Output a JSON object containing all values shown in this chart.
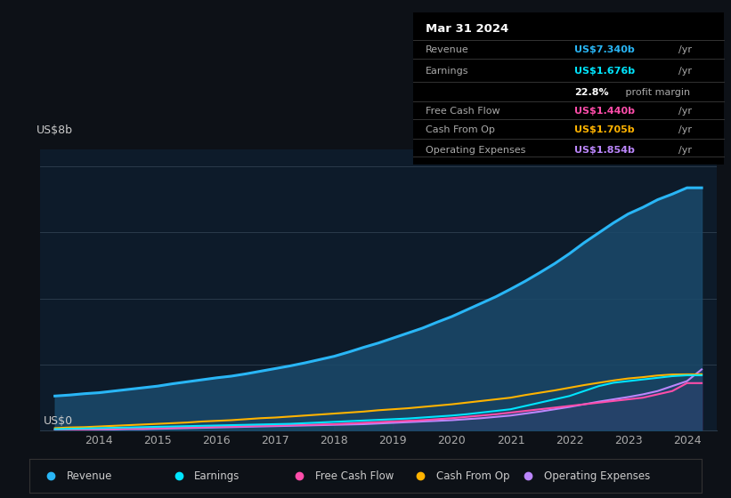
{
  "background_color": "#0d1117",
  "plot_bg_color": "#0d1b2a",
  "ylabel": "US$8b",
  "y0label": "US$0",
  "years": [
    2013.25,
    2013.5,
    2013.75,
    2014.0,
    2014.25,
    2014.5,
    2014.75,
    2015.0,
    2015.25,
    2015.5,
    2015.75,
    2016.0,
    2016.25,
    2016.5,
    2016.75,
    2017.0,
    2017.25,
    2017.5,
    2017.75,
    2018.0,
    2018.25,
    2018.5,
    2018.75,
    2019.0,
    2019.25,
    2019.5,
    2019.75,
    2020.0,
    2020.25,
    2020.5,
    2020.75,
    2021.0,
    2021.25,
    2021.5,
    2021.75,
    2022.0,
    2022.25,
    2022.5,
    2022.75,
    2023.0,
    2023.25,
    2023.5,
    2023.75,
    2024.0,
    2024.25
  ],
  "revenue": [
    1.05,
    1.08,
    1.12,
    1.15,
    1.2,
    1.25,
    1.3,
    1.35,
    1.42,
    1.48,
    1.54,
    1.6,
    1.65,
    1.72,
    1.8,
    1.88,
    1.96,
    2.05,
    2.15,
    2.25,
    2.38,
    2.52,
    2.65,
    2.8,
    2.95,
    3.1,
    3.28,
    3.45,
    3.65,
    3.85,
    4.05,
    4.28,
    4.52,
    4.78,
    5.05,
    5.35,
    5.68,
    5.98,
    6.28,
    6.55,
    6.75,
    6.98,
    7.15,
    7.34,
    7.34
  ],
  "earnings": [
    0.05,
    0.06,
    0.07,
    0.08,
    0.09,
    0.1,
    0.11,
    0.12,
    0.13,
    0.14,
    0.15,
    0.16,
    0.17,
    0.18,
    0.19,
    0.2,
    0.21,
    0.23,
    0.25,
    0.27,
    0.29,
    0.31,
    0.33,
    0.35,
    0.37,
    0.4,
    0.43,
    0.46,
    0.5,
    0.55,
    0.6,
    0.65,
    0.75,
    0.85,
    0.95,
    1.05,
    1.2,
    1.35,
    1.45,
    1.5,
    1.55,
    1.6,
    1.65,
    1.676,
    1.676
  ],
  "free_cash_flow": [
    0.03,
    0.04,
    0.04,
    0.05,
    0.06,
    0.07,
    0.07,
    0.08,
    0.09,
    0.1,
    0.11,
    0.12,
    0.13,
    0.14,
    0.15,
    0.16,
    0.17,
    0.18,
    0.19,
    0.2,
    0.22,
    0.24,
    0.26,
    0.28,
    0.3,
    0.32,
    0.35,
    0.38,
    0.42,
    0.46,
    0.5,
    0.55,
    0.6,
    0.65,
    0.7,
    0.75,
    0.8,
    0.85,
    0.9,
    0.95,
    1.0,
    1.1,
    1.2,
    1.44,
    1.44
  ],
  "cash_from_op": [
    0.08,
    0.1,
    0.11,
    0.13,
    0.15,
    0.17,
    0.19,
    0.21,
    0.23,
    0.25,
    0.28,
    0.3,
    0.32,
    0.35,
    0.38,
    0.4,
    0.43,
    0.46,
    0.49,
    0.52,
    0.55,
    0.58,
    0.62,
    0.65,
    0.68,
    0.72,
    0.76,
    0.8,
    0.85,
    0.9,
    0.95,
    1.0,
    1.08,
    1.15,
    1.22,
    1.3,
    1.38,
    1.45,
    1.52,
    1.58,
    1.62,
    1.67,
    1.7,
    1.705,
    1.705
  ],
  "operating_expenses": [
    0.02,
    0.03,
    0.03,
    0.04,
    0.04,
    0.05,
    0.05,
    0.06,
    0.07,
    0.08,
    0.09,
    0.1,
    0.11,
    0.12,
    0.13,
    0.14,
    0.15,
    0.16,
    0.17,
    0.18,
    0.19,
    0.2,
    0.22,
    0.24,
    0.26,
    0.28,
    0.3,
    0.32,
    0.35,
    0.38,
    0.42,
    0.46,
    0.52,
    0.58,
    0.65,
    0.72,
    0.8,
    0.88,
    0.95,
    1.02,
    1.1,
    1.2,
    1.35,
    1.5,
    1.854
  ],
  "revenue_color": "#29b6f6",
  "earnings_color": "#00e5ff",
  "free_cash_flow_color": "#ff4daa",
  "cash_from_op_color": "#ffb300",
  "operating_expenses_color": "#bb86fc",
  "teal_region_end": 2018.0,
  "gray_region_start": 2018.0,
  "gray_region_end": 2019.0,
  "purple_region_start": 2019.0,
  "xlim": [
    2013.0,
    2024.5
  ],
  "ylim": [
    0,
    8.5
  ],
  "xticks": [
    2014,
    2015,
    2016,
    2017,
    2018,
    2019,
    2020,
    2021,
    2022,
    2023,
    2024
  ],
  "info_box": {
    "date": "Mar 31 2024",
    "revenue_label": "Revenue",
    "revenue_value": "US$7.340b",
    "revenue_color": "#29b6f6",
    "earnings_label": "Earnings",
    "earnings_value": "US$1.676b",
    "earnings_color": "#00e5ff",
    "margin_bold": "22.8%",
    "margin_rest": " profit margin",
    "fcf_label": "Free Cash Flow",
    "fcf_value": "US$1.440b",
    "fcf_color": "#ff4daa",
    "cashop_label": "Cash From Op",
    "cashop_value": "US$1.705b",
    "cashop_color": "#ffb300",
    "opex_label": "Operating Expenses",
    "opex_value": "US$1.854b",
    "opex_color": "#bb86fc"
  },
  "legend": [
    {
      "label": "Revenue",
      "color": "#29b6f6"
    },
    {
      "label": "Earnings",
      "color": "#00e5ff"
    },
    {
      "label": "Free Cash Flow",
      "color": "#ff4daa"
    },
    {
      "label": "Cash From Op",
      "color": "#ffb300"
    },
    {
      "label": "Operating Expenses",
      "color": "#bb86fc"
    }
  ]
}
